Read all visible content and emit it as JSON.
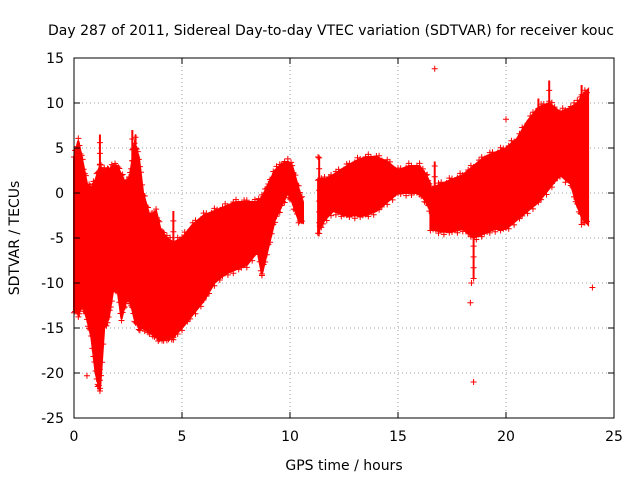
{
  "chart_data": {
    "type": "scatter",
    "title": "Day 287 of 2011, Sidereal Day-to-day VTEC variation (SDTVAR) for receiver kouc",
    "xlabel": "GPS time / hours",
    "ylabel": "SDTVAR / TECUs",
    "xlim": [
      0,
      25
    ],
    "ylim": [
      -25,
      15
    ],
    "xticks": [
      0,
      5,
      10,
      15,
      20,
      25
    ],
    "yticks": [
      -25,
      -20,
      -15,
      -10,
      -5,
      0,
      5,
      10,
      15
    ],
    "grid": true,
    "marker": "+",
    "series_color": "#ff0000",
    "series": [
      {
        "name": "SDTVAR",
        "envelope": [
          {
            "x": 0.0,
            "lo": -13.0,
            "hi": 4.0
          },
          {
            "x": 0.2,
            "lo": -13.5,
            "hi": 5.8
          },
          {
            "x": 0.4,
            "lo": -12.5,
            "hi": 3.5
          },
          {
            "x": 0.6,
            "lo": -14.0,
            "hi": 1.0
          },
          {
            "x": 0.8,
            "lo": -16.0,
            "hi": 0.5
          },
          {
            "x": 1.0,
            "lo": -20.0,
            "hi": 1.5
          },
          {
            "x": 1.2,
            "lo": -22.0,
            "hi": 3.0
          },
          {
            "x": 1.4,
            "lo": -15.0,
            "hi": 2.5
          },
          {
            "x": 1.6,
            "lo": -14.0,
            "hi": 2.5
          },
          {
            "x": 1.8,
            "lo": -11.0,
            "hi": 3.0
          },
          {
            "x": 2.0,
            "lo": -10.5,
            "hi": 3.0
          },
          {
            "x": 2.2,
            "lo": -14.0,
            "hi": 2.0
          },
          {
            "x": 2.4,
            "lo": -12.0,
            "hi": 1.0
          },
          {
            "x": 2.6,
            "lo": -12.0,
            "hi": 2.0
          },
          {
            "x": 2.8,
            "lo": -14.0,
            "hi": 5.5
          },
          {
            "x": 3.0,
            "lo": -15.0,
            "hi": 4.0
          },
          {
            "x": 3.2,
            "lo": -15.0,
            "hi": 0.0
          },
          {
            "x": 3.5,
            "lo": -15.5,
            "hi": -2.5
          },
          {
            "x": 3.8,
            "lo": -16.0,
            "hi": -2.0
          },
          {
            "x": 4.0,
            "lo": -16.3,
            "hi": -4.0
          },
          {
            "x": 4.3,
            "lo": -16.2,
            "hi": -5.0
          },
          {
            "x": 4.6,
            "lo": -16.0,
            "hi": -5.5
          },
          {
            "x": 5.0,
            "lo": -15.0,
            "hi": -5.0
          },
          {
            "x": 5.5,
            "lo": -13.5,
            "hi": -3.5
          },
          {
            "x": 6.0,
            "lo": -12.0,
            "hi": -2.5
          },
          {
            "x": 6.5,
            "lo": -10.0,
            "hi": -2.0
          },
          {
            "x": 7.0,
            "lo": -9.0,
            "hi": -1.5
          },
          {
            "x": 7.5,
            "lo": -8.5,
            "hi": -1.0
          },
          {
            "x": 8.0,
            "lo": -8.0,
            "hi": -1.0
          },
          {
            "x": 8.5,
            "lo": -6.5,
            "hi": -1.0
          },
          {
            "x": 8.7,
            "lo": -9.0,
            "hi": -0.5
          },
          {
            "x": 9.0,
            "lo": -6.0,
            "hi": 1.0
          },
          {
            "x": 9.3,
            "lo": -3.0,
            "hi": 2.5
          },
          {
            "x": 9.6,
            "lo": -1.5,
            "hi": 3.2
          },
          {
            "x": 9.9,
            "lo": 0.0,
            "hi": 3.5
          },
          {
            "x": 10.1,
            "lo": -1.0,
            "hi": 3.0
          },
          {
            "x": 10.4,
            "lo": -3.0,
            "hi": 0.5
          },
          {
            "x": 10.6,
            "lo": -3.3,
            "hi": -1.0
          }
        ],
        "envelope2": [
          {
            "x": 11.3,
            "lo": -4.3,
            "hi": 1.5
          },
          {
            "x": 11.6,
            "lo": -3.0,
            "hi": 1.5
          },
          {
            "x": 12.0,
            "lo": -2.0,
            "hi": 2.0
          },
          {
            "x": 12.5,
            "lo": -2.5,
            "hi": 2.8
          },
          {
            "x": 13.0,
            "lo": -2.5,
            "hi": 3.5
          },
          {
            "x": 13.5,
            "lo": -2.5,
            "hi": 4.0
          },
          {
            "x": 14.0,
            "lo": -2.0,
            "hi": 4.0
          },
          {
            "x": 14.5,
            "lo": -1.0,
            "hi": 3.5
          },
          {
            "x": 15.0,
            "lo": 0.0,
            "hi": 2.5
          },
          {
            "x": 15.5,
            "lo": 0.0,
            "hi": 3.0
          },
          {
            "x": 16.0,
            "lo": 0.0,
            "hi": 3.0
          },
          {
            "x": 16.3,
            "lo": -1.0,
            "hi": 2.0
          },
          {
            "x": 16.5,
            "lo": -2.0,
            "hi": 1.0
          }
        ],
        "envelope3": [
          {
            "x": 16.5,
            "lo": -4.0,
            "hi": 0.5
          },
          {
            "x": 17.0,
            "lo": -4.3,
            "hi": 1.0
          },
          {
            "x": 17.5,
            "lo": -4.3,
            "hi": 1.5
          },
          {
            "x": 18.0,
            "lo": -4.0,
            "hi": 2.0
          },
          {
            "x": 18.5,
            "lo": -5.0,
            "hi": 3.0
          },
          {
            "x": 19.0,
            "lo": -4.5,
            "hi": 4.0
          },
          {
            "x": 19.5,
            "lo": -4.0,
            "hi": 4.5
          },
          {
            "x": 20.0,
            "lo": -4.0,
            "hi": 5.0
          },
          {
            "x": 20.5,
            "lo": -3.0,
            "hi": 6.0
          },
          {
            "x": 21.0,
            "lo": -2.0,
            "hi": 8.0
          },
          {
            "x": 21.5,
            "lo": -1.0,
            "hi": 9.5
          },
          {
            "x": 22.0,
            "lo": 0.5,
            "hi": 10.0
          },
          {
            "x": 22.5,
            "lo": 2.0,
            "hi": 9.0
          },
          {
            "x": 23.0,
            "lo": 1.0,
            "hi": 9.5
          },
          {
            "x": 23.3,
            "lo": -1.5,
            "hi": 10.0
          },
          {
            "x": 23.6,
            "lo": -3.0,
            "hi": 11.0
          },
          {
            "x": 23.8,
            "lo": -3.5,
            "hi": 11.5
          }
        ],
        "spikes": [
          {
            "x": 1.2,
            "lo": -22.0,
            "hi": 6.5
          },
          {
            "x": 2.7,
            "lo": -12.0,
            "hi": 7.0
          },
          {
            "x": 2.85,
            "lo": -13.0,
            "hi": 6.5
          },
          {
            "x": 4.6,
            "lo": -16.3,
            "hi": -2.0
          },
          {
            "x": 8.7,
            "lo": -9.0,
            "hi": -1.0
          },
          {
            "x": 11.35,
            "lo": -4.5,
            "hi": 4.0
          },
          {
            "x": 16.7,
            "lo": -3.0,
            "hi": 3.5
          },
          {
            "x": 18.5,
            "lo": -9.5,
            "hi": -3.0
          },
          {
            "x": 21.5,
            "lo": 1.0,
            "hi": 10.5
          },
          {
            "x": 22.0,
            "lo": 3.0,
            "hi": 12.5
          },
          {
            "x": 23.5,
            "lo": -3.5,
            "hi": 12.0
          }
        ],
        "outliers": [
          {
            "x": 16.7,
            "y": 13.8
          },
          {
            "x": 18.35,
            "y": -12.2
          },
          {
            "x": 18.5,
            "y": -21.0
          },
          {
            "x": 20.0,
            "y": 8.2
          },
          {
            "x": 24.0,
            "y": -10.5
          },
          {
            "x": 0.6,
            "y": -20.3
          },
          {
            "x": 1.1,
            "y": -21.5
          },
          {
            "x": 11.3,
            "y": 4.0
          },
          {
            "x": 18.4,
            "y": -10.0
          }
        ]
      }
    ]
  }
}
